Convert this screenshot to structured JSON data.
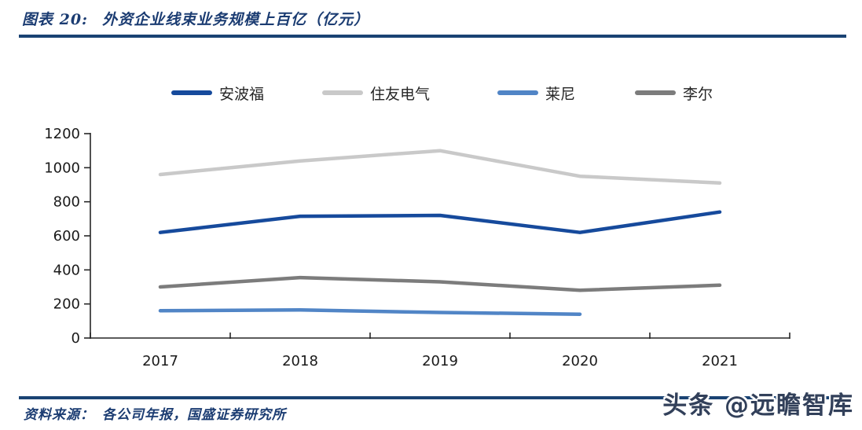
{
  "header": {
    "figure_label": "图表 20:",
    "title": "外资企业线束业务规模上百亿（亿元）"
  },
  "footer": {
    "source_label": "资料来源：",
    "source_text": "各公司年报，国盛证券研究所"
  },
  "watermark": {
    "text": "头条 @远瞻智库"
  },
  "colors": {
    "accent_rule": "#1a4373",
    "title_text": "#1b3c72",
    "axis": "#262626"
  },
  "chart_data": {
    "type": "line",
    "title": "外资企业线束业务规模上百亿（亿元）",
    "xlabel": "",
    "ylabel": "",
    "categories": [
      "2017",
      "2018",
      "2019",
      "2020",
      "2021"
    ],
    "series": [
      {
        "name": "安波福",
        "color": "#164a9c",
        "values": [
          620,
          715,
          720,
          620,
          740
        ]
      },
      {
        "name": "住友电气",
        "color": "#c9c9c9",
        "values": [
          960,
          1040,
          1100,
          950,
          910
        ]
      },
      {
        "name": "莱尼",
        "color": "#5185c6",
        "values": [
          160,
          165,
          150,
          140,
          null
        ]
      },
      {
        "name": "李尔",
        "color": "#7c7c7c",
        "values": [
          300,
          355,
          330,
          280,
          310
        ]
      }
    ],
    "ylim": [
      0,
      1200
    ],
    "y_tick_step": 200,
    "y_ticks": [
      0,
      200,
      400,
      600,
      800,
      1000,
      1200
    ],
    "grid": false,
    "legend_position": "top"
  }
}
